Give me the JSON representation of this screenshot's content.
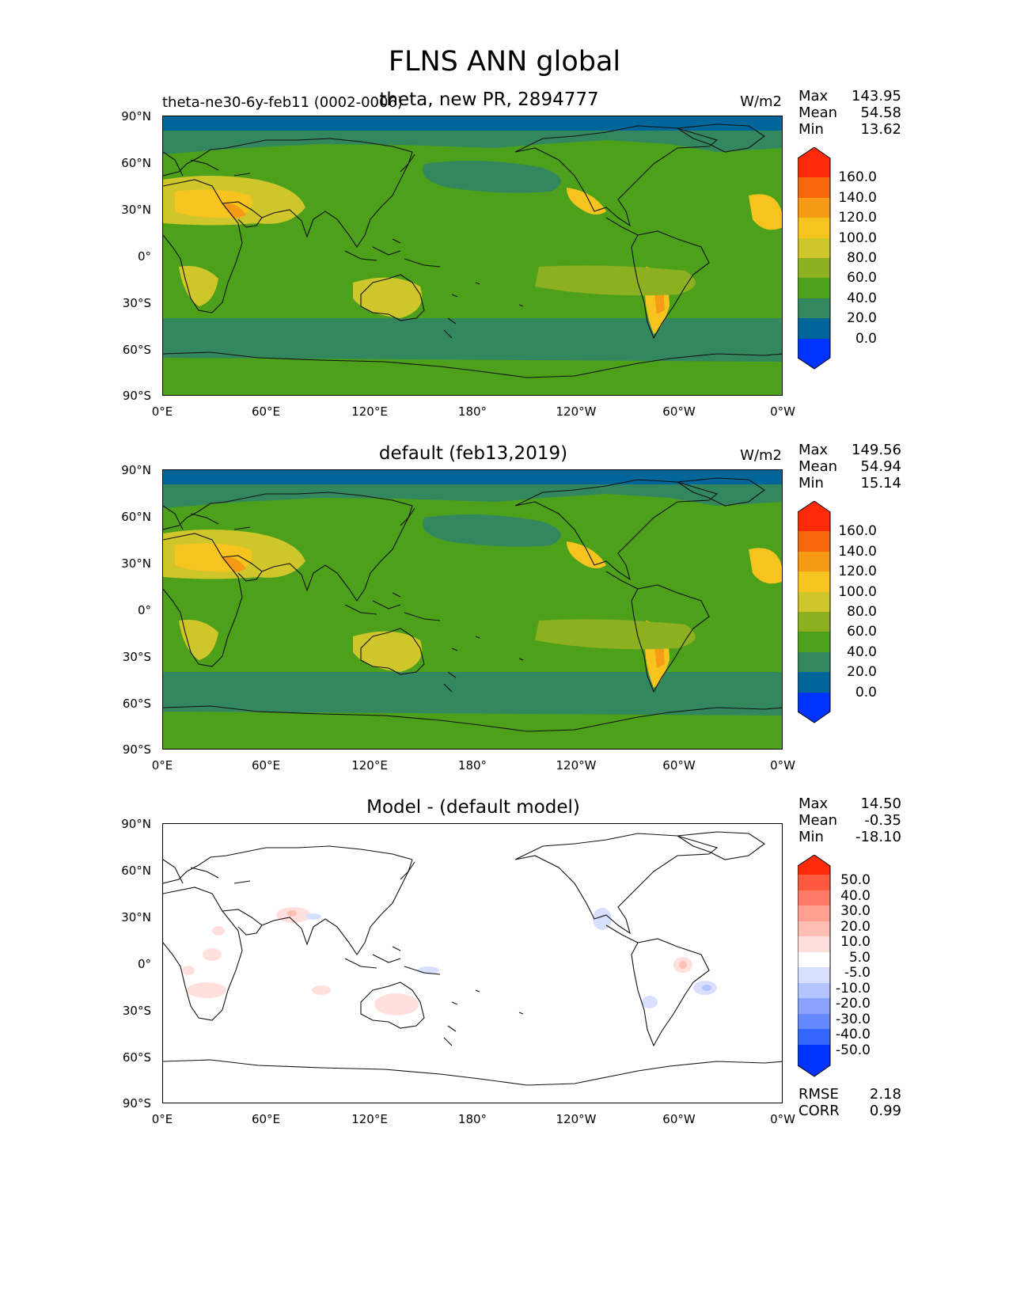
{
  "figure": {
    "title": "FLNS ANN global",
    "x_ticks": [
      "0°E",
      "60°E",
      "120°E",
      "180°",
      "120°W",
      "60°W",
      "0°W"
    ],
    "y_ticks": [
      "90°N",
      "60°N",
      "30°N",
      "0°",
      "30°S",
      "60°S",
      "90°S"
    ]
  },
  "panels": [
    {
      "id": "test",
      "title": "theta, new PR, 2894777",
      "ref_label": "theta-ne30-6y-feb11 (0002-0006)",
      "units": "W/m2",
      "stats": [
        {
          "label": "Max",
          "value": "143.95"
        },
        {
          "label": "Mean",
          "value": "54.58"
        },
        {
          "label": "Min",
          "value": "13.62"
        }
      ],
      "colorbar": [
        "160.0",
        "140.0",
        "120.0",
        "100.0",
        "80.0",
        "60.0",
        "40.0",
        "20.0",
        "0.0"
      ]
    },
    {
      "id": "reference",
      "title": "default (feb13,2019)",
      "units": "W/m2",
      "stats": [
        {
          "label": "Max",
          "value": "149.56"
        },
        {
          "label": "Mean",
          "value": "54.94"
        },
        {
          "label": "Min",
          "value": "15.14"
        }
      ],
      "colorbar": [
        "160.0",
        "140.0",
        "120.0",
        "100.0",
        "80.0",
        "60.0",
        "40.0",
        "20.0",
        "0.0"
      ]
    },
    {
      "id": "difference",
      "title": "Model - (default model)",
      "stats": [
        {
          "label": "Max",
          "value": "14.50"
        },
        {
          "label": "Mean",
          "value": "-0.35"
        },
        {
          "label": "Min",
          "value": "-18.10"
        }
      ],
      "colorbar": [
        "50.0",
        "40.0",
        "30.0",
        "20.0",
        "10.0",
        "5.0",
        "-5.0",
        "-10.0",
        "-20.0",
        "-30.0",
        "-40.0",
        "-50.0"
      ],
      "metrics": [
        {
          "label": "RMSE",
          "value": "2.18"
        },
        {
          "label": "CORR",
          "value": "0.99"
        }
      ]
    }
  ],
  "colors": {
    "abs_bins": [
      "#0033ff",
      "#006699",
      "#33875f",
      "#4ca01a",
      "#8cb01f",
      "#cfc62b",
      "#f7c41f",
      "#f79a15",
      "#f6670b",
      "#ff2a09"
    ],
    "diff_bins": [
      "#0033ff",
      "#3366ff",
      "#6688ff",
      "#8ca3ff",
      "#b4c4ff",
      "#d9e0ff",
      "#ffffff",
      "#ffe0dc",
      "#ffbfb4",
      "#ff9f90",
      "#ff7a66",
      "#ff5a40",
      "#ff2a09"
    ]
  }
}
